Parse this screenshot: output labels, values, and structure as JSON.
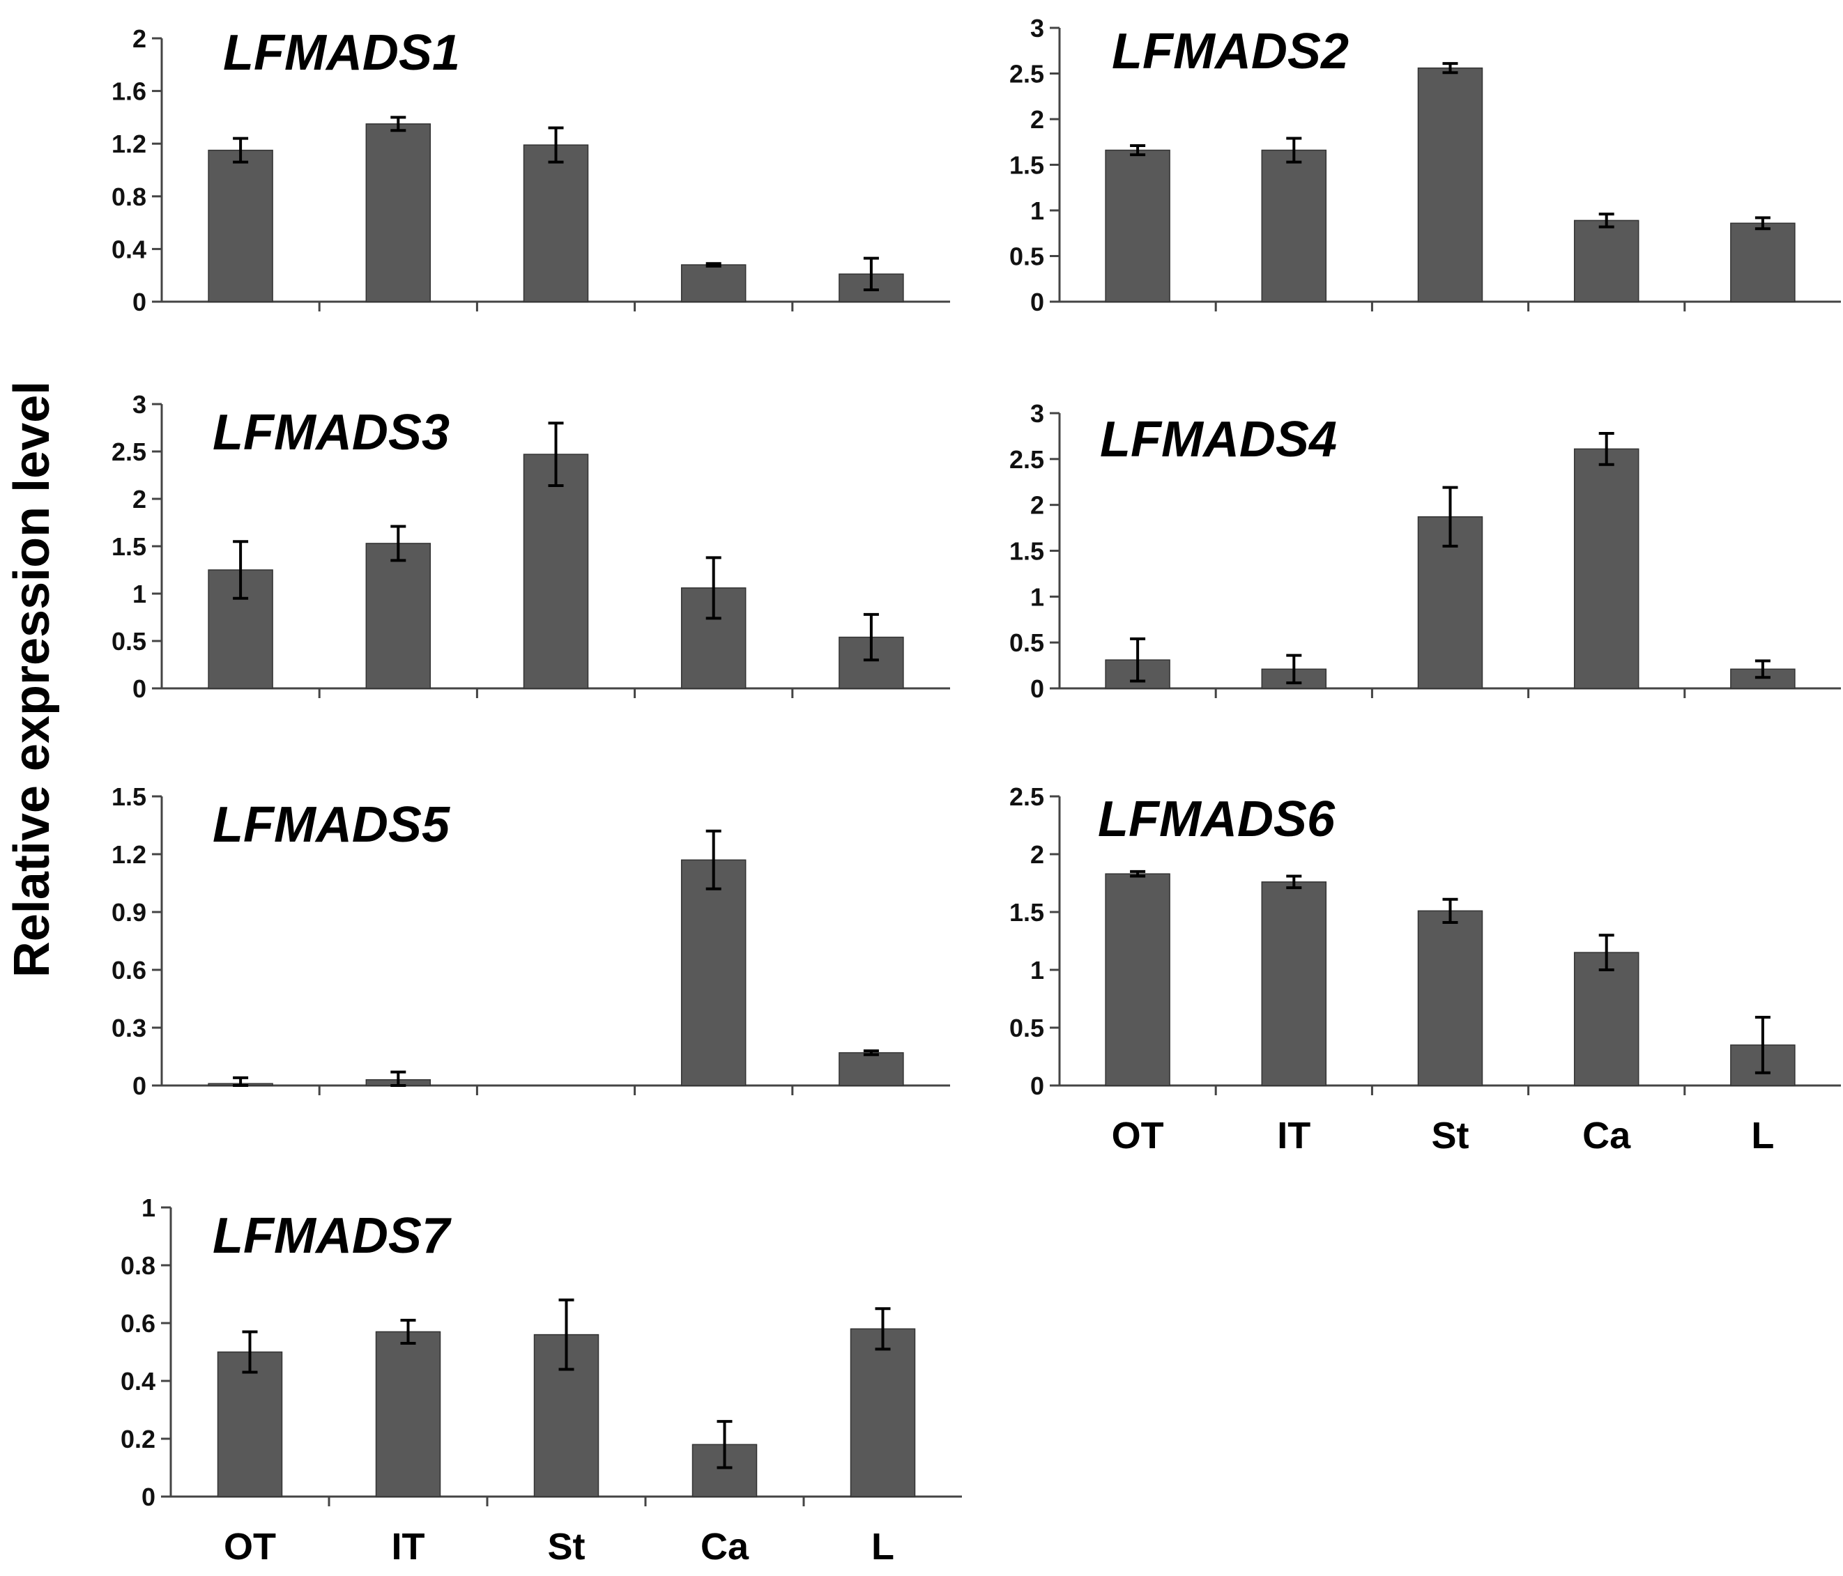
{
  "figure": {
    "y_axis_label": "Relative expression level",
    "bar_color": "#595959"
  },
  "chart_data": [
    {
      "type": "bar",
      "title": "LFMADS1",
      "categories": [
        "OT",
        "IT",
        "St",
        "Ca",
        "L"
      ],
      "show_category_labels": false,
      "values": [
        1.15,
        1.35,
        1.19,
        0.28,
        0.21
      ],
      "errors": [
        0.09,
        0.05,
        0.13,
        0.01,
        0.12
      ],
      "ylim": [
        0,
        2
      ],
      "yticks": [
        0,
        0.4,
        0.8,
        1.2,
        1.6,
        2
      ],
      "ytick_labels": [
        "0",
        "0.4",
        "0.8",
        "1.2",
        "1.6",
        "2"
      ],
      "xlabel": "",
      "ylabel": "Relative expression level"
    },
    {
      "type": "bar",
      "title": "LFMADS2",
      "categories": [
        "OT",
        "IT",
        "St",
        "Ca",
        "L"
      ],
      "show_category_labels": false,
      "values": [
        1.66,
        1.66,
        2.56,
        0.89,
        0.86
      ],
      "errors": [
        0.05,
        0.13,
        0.05,
        0.07,
        0.06
      ],
      "ylim": [
        0,
        3
      ],
      "yticks": [
        0,
        0.5,
        1,
        1.5,
        2,
        2.5,
        3
      ],
      "ytick_labels": [
        "0",
        "0.5",
        "1",
        "1.5",
        "2",
        "2.5",
        "3"
      ],
      "xlabel": "",
      "ylabel": "Relative expression level"
    },
    {
      "type": "bar",
      "title": "LFMADS3",
      "categories": [
        "OT",
        "IT",
        "St",
        "Ca",
        "L"
      ],
      "show_category_labels": false,
      "values": [
        1.25,
        1.53,
        2.47,
        1.06,
        0.54
      ],
      "errors": [
        0.3,
        0.18,
        0.33,
        0.32,
        0.24
      ],
      "ylim": [
        0,
        3
      ],
      "yticks": [
        0,
        0.5,
        1,
        1.5,
        2,
        2.5,
        3
      ],
      "ytick_labels": [
        "0",
        "0.5",
        "1",
        "1.5",
        "2",
        "2.5",
        "3"
      ],
      "xlabel": "",
      "ylabel": "Relative expression level"
    },
    {
      "type": "bar",
      "title": "LFMADS4",
      "categories": [
        "OT",
        "IT",
        "St",
        "Ca",
        "L"
      ],
      "show_category_labels": false,
      "values": [
        0.31,
        0.21,
        1.87,
        2.61,
        0.21
      ],
      "errors": [
        0.23,
        0.15,
        0.32,
        0.17,
        0.09
      ],
      "ylim": [
        0,
        3
      ],
      "yticks": [
        0,
        0.5,
        1,
        1.5,
        2,
        2.5,
        3
      ],
      "ytick_labels": [
        "0",
        "0.5",
        "1",
        "1.5",
        "2",
        "2.5",
        "3"
      ],
      "xlabel": "",
      "ylabel": "Relative expression level"
    },
    {
      "type": "bar",
      "title": "LFMADS5",
      "categories": [
        "OT",
        "IT",
        "St",
        "Ca",
        "L"
      ],
      "show_category_labels": false,
      "values": [
        0.01,
        0.03,
        0.0,
        1.17,
        0.17
      ],
      "errors": [
        0.03,
        0.04,
        0.0,
        0.15,
        0.01
      ],
      "ylim": [
        0,
        1.5
      ],
      "yticks": [
        0,
        0.3,
        0.6,
        0.9,
        1.2,
        1.5
      ],
      "ytick_labels": [
        "0",
        "0.3",
        "0.6",
        "0.9",
        "1.2",
        "1.5"
      ],
      "xlabel": "",
      "ylabel": "Relative expression level"
    },
    {
      "type": "bar",
      "title": "LFMADS6",
      "categories": [
        "OT",
        "IT",
        "St",
        "Ca",
        "L"
      ],
      "show_category_labels": true,
      "values": [
        1.83,
        1.76,
        1.51,
        1.15,
        0.35
      ],
      "errors": [
        0.02,
        0.05,
        0.1,
        0.15,
        0.24
      ],
      "ylim": [
        0,
        2.5
      ],
      "yticks": [
        0,
        0.5,
        1,
        1.5,
        2,
        2.5
      ],
      "ytick_labels": [
        "0",
        "0.5",
        "1",
        "1.5",
        "2",
        "2.5"
      ],
      "xlabel": "",
      "ylabel": "Relative expression level"
    },
    {
      "type": "bar",
      "title": "LFMADS7",
      "categories": [
        "OT",
        "IT",
        "St",
        "Ca",
        "L"
      ],
      "show_category_labels": true,
      "values": [
        0.5,
        0.57,
        0.56,
        0.18,
        0.58
      ],
      "errors": [
        0.07,
        0.04,
        0.12,
        0.08,
        0.07
      ],
      "ylim": [
        0,
        1
      ],
      "yticks": [
        0,
        0.2,
        0.4,
        0.6,
        0.8,
        1
      ],
      "ytick_labels": [
        "0",
        "0.2",
        "0.4",
        "0.6",
        "0.8",
        "1"
      ],
      "xlabel": "",
      "ylabel": "Relative expression level"
    }
  ]
}
